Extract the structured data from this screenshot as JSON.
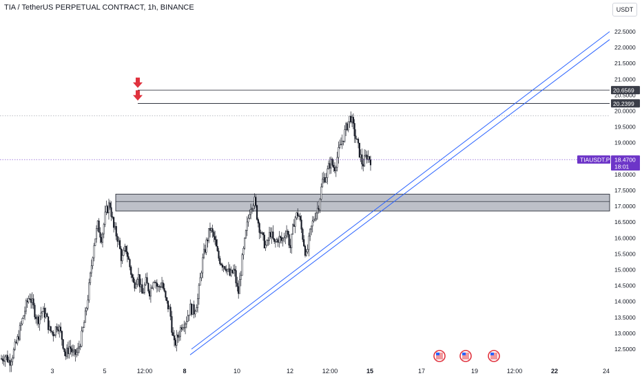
{
  "header": {
    "title": "TIA / TetherUS PERPETUAL CONTRACT, 1h, BINANCE",
    "currency_button": "USDT"
  },
  "chart_data": {
    "type": "candlestick",
    "symbol": "TIAUSDT.P",
    "interval": "1h",
    "exchange": "BINANCE",
    "y_axis": {
      "range": [
        12.2,
        22.7
      ],
      "ticks": [
        "12.5000",
        "13.0000",
        "13.5000",
        "14.0000",
        "14.5000",
        "15.0000",
        "15.5000",
        "16.0000",
        "16.5000",
        "17.0000",
        "17.5000",
        "18.0000",
        "18.5000",
        "19.0000",
        "19.5000",
        "20.0000",
        "20.5000",
        "21.0000",
        "21.5000",
        "22.0000",
        "22.5000"
      ]
    },
    "x_axis": {
      "ticks": [
        {
          "label": "3",
          "bold": false
        },
        {
          "label": "5",
          "bold": false
        },
        {
          "label": "12:00",
          "bold": false
        },
        {
          "label": "8",
          "bold": true
        },
        {
          "label": "10",
          "bold": false
        },
        {
          "label": "12",
          "bold": false
        },
        {
          "label": "12:00",
          "bold": false
        },
        {
          "label": "15",
          "bold": true
        },
        {
          "label": "17",
          "bold": false
        },
        {
          "label": "19",
          "bold": false
        },
        {
          "label": "12:00",
          "bold": false
        },
        {
          "label": "22",
          "bold": true
        },
        {
          "label": "24",
          "bold": false
        }
      ]
    },
    "price_path": [
      12.2,
      12.3,
      12.1,
      12.4,
      12.8,
      13.3,
      13.8,
      14.2,
      13.8,
      13.4,
      13.7,
      13.6,
      13.1,
      13.0,
      13.3,
      12.9,
      12.3,
      12.6,
      12.3,
      12.4,
      12.9,
      13.6,
      14.6,
      15.8,
      16.4,
      16.0,
      16.8,
      17.1,
      16.3,
      16.0,
      15.3,
      15.7,
      15.1,
      14.5,
      14.9,
      14.2,
      14.6,
      14.3,
      14.8,
      14.4,
      14.6,
      14.0,
      13.7,
      12.6,
      12.9,
      13.3,
      13.4,
      13.8,
      13.7,
      14.1,
      15.2,
      15.8,
      16.3,
      16.0,
      15.4,
      15.2,
      15.1,
      14.8,
      15.0,
      14.2,
      15.3,
      16.2,
      17.0,
      17.2,
      16.5,
      16.0,
      15.7,
      16.2,
      15.8,
      16.0,
      15.9,
      16.3,
      15.7,
      16.6,
      16.8,
      16.1,
      15.4,
      16.2,
      16.7,
      17.0,
      17.8,
      18.0,
      18.4,
      18.2,
      18.7,
      19.1,
      19.5,
      19.85,
      19.3,
      18.8,
      18.3,
      18.6,
      18.47
    ],
    "horizontal_lines": [
      {
        "price": 20.6569,
        "label": "20.6569"
      },
      {
        "price": 20.2399,
        "label": "20.2399"
      }
    ],
    "dotted_lines": [
      {
        "price": 19.85
      },
      {
        "price": 18.47
      }
    ],
    "zone": {
      "low": 16.85,
      "high": 17.38,
      "mid": 17.15
    },
    "trendlines": [
      {
        "from": {
          "candle": 0.67,
          "price": 12.5
        },
        "to": {
          "candle": 1.0,
          "price": 22.5
        }
      },
      {
        "from": {
          "candle": 0.67,
          "price": 12.32
        },
        "to": {
          "candle": 1.0,
          "price": 22.25
        }
      }
    ],
    "arrow_markers": [
      {
        "price": 20.75
      },
      {
        "price": 20.35
      }
    ],
    "current_price": {
      "symbol": "TIAUSDT.P",
      "price": "18.4700",
      "countdown": "18:01"
    },
    "event_flags": [
      "US",
      "US",
      "US"
    ],
    "colors": {
      "candle": "#131722",
      "trendline": "#2962ff",
      "zone": "#b2b5be",
      "arrow": "#e0323e",
      "price_tag": "#6d35c8",
      "level_tag": "#3a3d47"
    }
  }
}
